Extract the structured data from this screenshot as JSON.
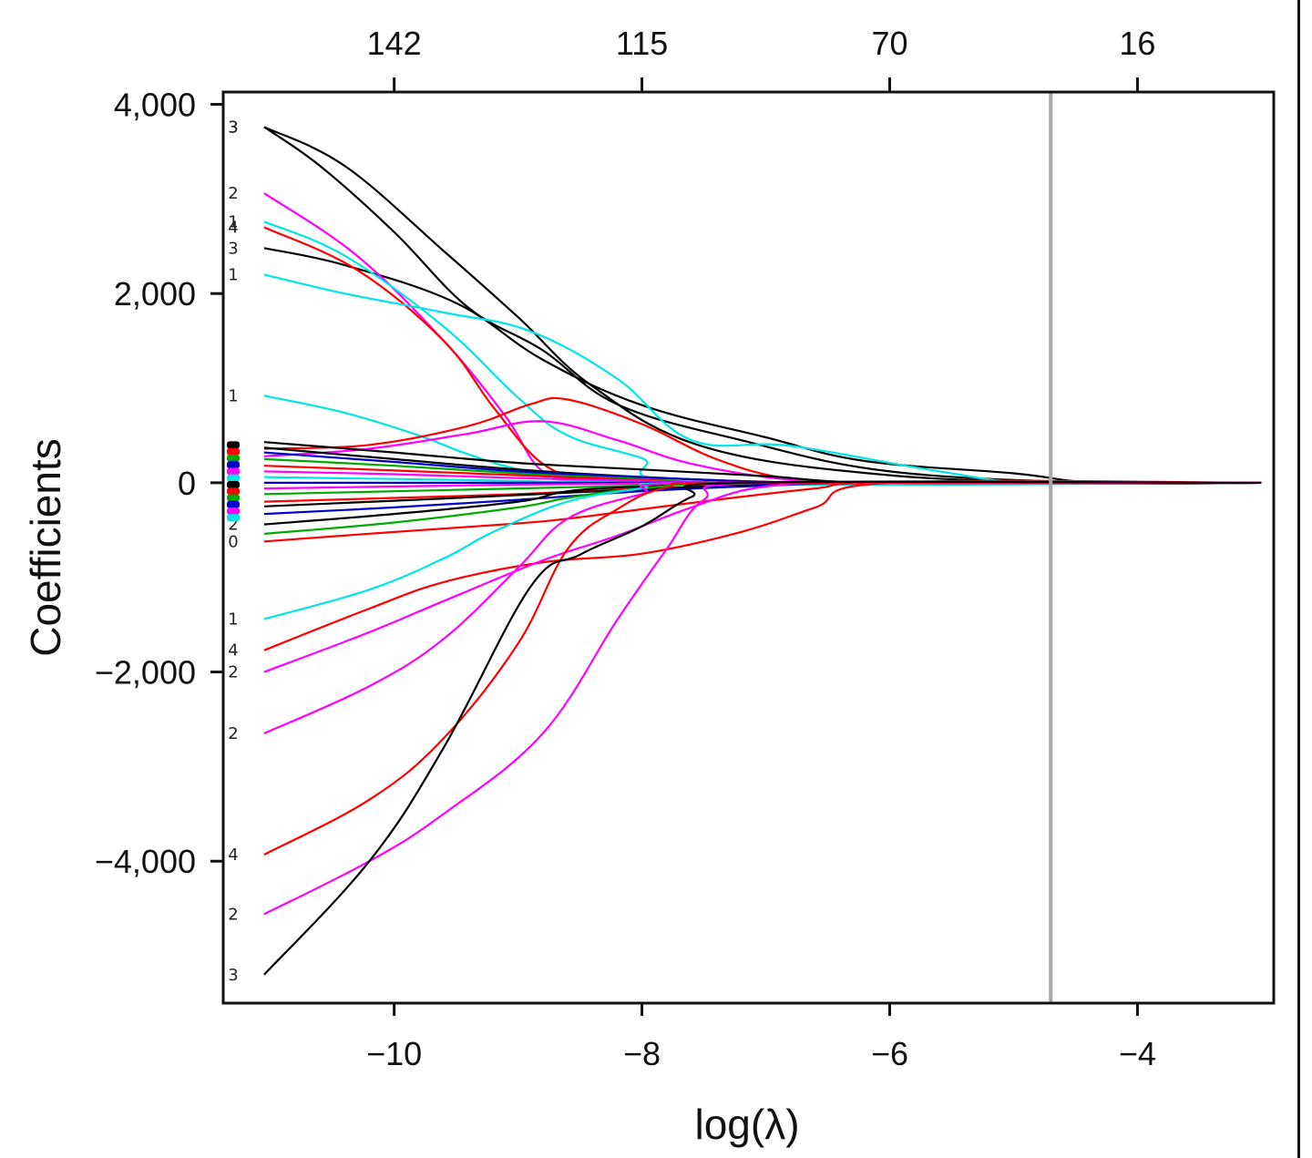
{
  "chart_data": {
    "type": "line",
    "title": "",
    "xlabel": "log(λ)",
    "ylabel": "Coefficients",
    "xlim": [
      -11.38,
      -2.9
    ],
    "ylim": [
      -5500,
      4130
    ],
    "x_ticks": [
      -10,
      -8,
      -6,
      -4
    ],
    "x_tick_labels": [
      "−10",
      "−8",
      "−6",
      "−4"
    ],
    "y_ticks": [
      4000,
      2000,
      0,
      -2000,
      -4000
    ],
    "y_tick_labels": [
      "4,000",
      "2,000",
      "0",
      "−2,000",
      "−4,000"
    ],
    "top_ticks": [
      -10,
      -8,
      -6,
      -4
    ],
    "top_tick_labels": [
      "142",
      "115",
      "70",
      "16"
    ],
    "vline": {
      "x": -4.7,
      "color": "#a8a8a8"
    },
    "grid": false,
    "legend": "none",
    "series": [
      {
        "color": "#000000",
        "label": "3",
        "points": [
          [
            -11.05,
            3760
          ],
          [
            -10.4,
            3350
          ],
          [
            -9.6,
            2450
          ],
          [
            -9.0,
            1750
          ],
          [
            -8.4,
            1020
          ],
          [
            -7.5,
            380
          ],
          [
            -6.0,
            80
          ],
          [
            -4.3,
            0
          ],
          [
            -3.0,
            0
          ]
        ]
      },
      {
        "color": "#000000",
        "label": "3",
        "points": [
          [
            -11.05,
            3760
          ],
          [
            -10.6,
            3350
          ],
          [
            -10.0,
            2650
          ],
          [
            -9.4,
            1850
          ],
          [
            -8.8,
            1400
          ],
          [
            -8.2,
            830
          ],
          [
            -7.2,
            450
          ],
          [
            -6.0,
            120
          ],
          [
            -4.3,
            0
          ],
          [
            -3.0,
            0
          ]
        ]
      },
      {
        "color": "#000000",
        "label": "3",
        "points": [
          [
            -11.05,
            2480
          ],
          [
            -10.4,
            2300
          ],
          [
            -9.5,
            1900
          ],
          [
            -8.8,
            1300
          ],
          [
            -8.0,
            820
          ],
          [
            -7.0,
            480
          ],
          [
            -6.2,
            230
          ],
          [
            -5.0,
            100
          ],
          [
            -4.3,
            0
          ],
          [
            -3.0,
            0
          ]
        ]
      },
      {
        "color": "#ff00ff",
        "label": "2",
        "points": [
          [
            -11.05,
            3060
          ],
          [
            -10.3,
            2400
          ],
          [
            -9.6,
            1500
          ],
          [
            -9.1,
            700
          ],
          [
            -8.8,
            120
          ],
          [
            -8.4,
            40
          ],
          [
            -7.5,
            0
          ],
          [
            -3.0,
            0
          ]
        ]
      },
      {
        "color": "#00e5e5",
        "label": "1",
        "points": [
          [
            -11.05,
            2760
          ],
          [
            -10.4,
            2400
          ],
          [
            -9.6,
            1650
          ],
          [
            -9.0,
            900
          ],
          [
            -8.6,
            500
          ],
          [
            -8.0,
            260
          ],
          [
            -7.5,
            0
          ],
          [
            -3.0,
            0
          ]
        ]
      },
      {
        "color": "#ff0000",
        "label": "4",
        "points": [
          [
            -11.05,
            2700
          ],
          [
            -10.3,
            2250
          ],
          [
            -9.6,
            1500
          ],
          [
            -9.2,
            800
          ],
          [
            -8.8,
            200
          ],
          [
            -8.4,
            60
          ],
          [
            -7.5,
            0
          ],
          [
            -3.0,
            0
          ]
        ]
      },
      {
        "color": "#00e5e5",
        "label": "1",
        "points": [
          [
            -11.05,
            2200
          ],
          [
            -10.4,
            2000
          ],
          [
            -9.6,
            1800
          ],
          [
            -8.9,
            1600
          ],
          [
            -8.2,
            1100
          ],
          [
            -7.6,
            450
          ],
          [
            -6.8,
            390
          ],
          [
            -5.6,
            120
          ],
          [
            -4.8,
            0
          ],
          [
            -3.0,
            0
          ]
        ]
      },
      {
        "color": "#00e5e5",
        "label": "1",
        "points": [
          [
            -11.05,
            920
          ],
          [
            -10.4,
            740
          ],
          [
            -9.8,
            500
          ],
          [
            -9.4,
            300
          ],
          [
            -8.9,
            120
          ],
          [
            -8.0,
            0
          ],
          [
            -3.0,
            0
          ]
        ]
      },
      {
        "color": "#ff0000",
        "label": "",
        "points": [
          [
            -11.05,
            360
          ],
          [
            -10.2,
            400
          ],
          [
            -9.4,
            600
          ],
          [
            -8.9,
            830
          ],
          [
            -8.6,
            880
          ],
          [
            -8.0,
            620
          ],
          [
            -7.4,
            250
          ],
          [
            -6.8,
            40
          ],
          [
            -6.0,
            0
          ],
          [
            -3.0,
            0
          ]
        ]
      },
      {
        "color": "#ff00ff",
        "label": "",
        "points": [
          [
            -11.05,
            280
          ],
          [
            -10.2,
            360
          ],
          [
            -9.4,
            520
          ],
          [
            -8.8,
            650
          ],
          [
            -8.2,
            450
          ],
          [
            -7.6,
            200
          ],
          [
            -6.8,
            30
          ],
          [
            -6.0,
            0
          ],
          [
            -3.0,
            0
          ]
        ]
      },
      {
        "color": "#000000",
        "label": "",
        "points": [
          [
            -11.05,
            430
          ],
          [
            -10.0,
            320
          ],
          [
            -9.0,
            210
          ],
          [
            -8.0,
            140
          ],
          [
            -7.0,
            70
          ],
          [
            -6.0,
            0
          ],
          [
            -3.0,
            0
          ]
        ]
      },
      {
        "color": "#000000",
        "label": "",
        "points": [
          [
            -11.05,
            370
          ],
          [
            -10.0,
            250
          ],
          [
            -9.0,
            140
          ],
          [
            -8.0,
            60
          ],
          [
            -7.0,
            10
          ],
          [
            -6.2,
            0
          ],
          [
            -3.0,
            0
          ]
        ]
      },
      {
        "color": "#00aa00",
        "label": "",
        "points": [
          [
            -11.05,
            250
          ],
          [
            -10.0,
            180
          ],
          [
            -9.0,
            100
          ],
          [
            -8.0,
            40
          ],
          [
            -7.0,
            0
          ],
          [
            -3.0,
            0
          ]
        ]
      },
      {
        "color": "#0000cc",
        "label": "",
        "points": [
          [
            -11.05,
            320
          ],
          [
            -10.0,
            220
          ],
          [
            -9.0,
            120
          ],
          [
            -8.0,
            60
          ],
          [
            -7.0,
            10
          ],
          [
            -6.0,
            0
          ],
          [
            -3.0,
            0
          ]
        ]
      },
      {
        "color": "#ff0000",
        "label": "",
        "points": [
          [
            -11.05,
            180
          ],
          [
            -10.0,
            130
          ],
          [
            -9.0,
            80
          ],
          [
            -8.0,
            30
          ],
          [
            -7.0,
            0
          ],
          [
            -3.0,
            0
          ]
        ]
      },
      {
        "color": "#ff00ff",
        "label": "",
        "points": [
          [
            -11.05,
            120
          ],
          [
            -10.0,
            90
          ],
          [
            -9.0,
            50
          ],
          [
            -8.0,
            20
          ],
          [
            -7.0,
            0
          ],
          [
            -3.0,
            0
          ]
        ]
      },
      {
        "color": "#00e5e5",
        "label": "",
        "points": [
          [
            -11.05,
            60
          ],
          [
            -10.0,
            40
          ],
          [
            -9.0,
            20
          ],
          [
            -8.0,
            0
          ],
          [
            -3.0,
            0
          ]
        ]
      },
      {
        "color": "#0000cc",
        "label": "",
        "points": [
          [
            -11.05,
            0
          ],
          [
            -10.0,
            0
          ],
          [
            -8.0,
            0
          ],
          [
            -6.0,
            0
          ],
          [
            -3.0,
            0
          ]
        ]
      },
      {
        "color": "#ff00ff",
        "label": "",
        "points": [
          [
            -11.05,
            -60
          ],
          [
            -10.0,
            -40
          ],
          [
            -9.0,
            -20
          ],
          [
            -8.0,
            -10
          ],
          [
            -7.0,
            0
          ],
          [
            -3.0,
            0
          ]
        ]
      },
      {
        "color": "#00aa00",
        "label": "",
        "points": [
          [
            -11.05,
            -120
          ],
          [
            -10.0,
            -90
          ],
          [
            -9.0,
            -60
          ],
          [
            -8.0,
            -30
          ],
          [
            -7.0,
            0
          ],
          [
            -3.0,
            0
          ]
        ]
      },
      {
        "color": "#ff0000",
        "label": "",
        "points": [
          [
            -11.05,
            -200
          ],
          [
            -10.0,
            -160
          ],
          [
            -9.0,
            -120
          ],
          [
            -8.0,
            -60
          ],
          [
            -7.0,
            -20
          ],
          [
            -6.0,
            0
          ],
          [
            -3.0,
            0
          ]
        ]
      },
      {
        "color": "#000000",
        "label": "",
        "points": [
          [
            -11.05,
            -250
          ],
          [
            -10.0,
            -190
          ],
          [
            -9.0,
            -130
          ],
          [
            -8.0,
            -70
          ],
          [
            -7.0,
            -20
          ],
          [
            -6.0,
            0
          ],
          [
            -3.0,
            0
          ]
        ]
      },
      {
        "color": "#0000cc",
        "label": "",
        "points": [
          [
            -11.05,
            -330
          ],
          [
            -10.0,
            -260
          ],
          [
            -9.0,
            -180
          ],
          [
            -8.0,
            -90
          ],
          [
            -7.0,
            -30
          ],
          [
            -6.0,
            0
          ],
          [
            -3.0,
            0
          ]
        ]
      },
      {
        "color": "#000000",
        "label": "2",
        "points": [
          [
            -11.05,
            -440
          ],
          [
            -10.0,
            -330
          ],
          [
            -9.0,
            -200
          ],
          [
            -8.6,
            -90
          ],
          [
            -8.0,
            -40
          ],
          [
            -7.0,
            0
          ],
          [
            -3.0,
            0
          ]
        ]
      },
      {
        "color": "#00aa00",
        "label": "",
        "points": [
          [
            -11.05,
            -540
          ],
          [
            -10.0,
            -420
          ],
          [
            -9.0,
            -260
          ],
          [
            -8.6,
            -160
          ],
          [
            -8.0,
            -60
          ],
          [
            -7.0,
            0
          ],
          [
            -3.0,
            0
          ]
        ]
      },
      {
        "color": "#ff0000",
        "label": "0",
        "points": [
          [
            -11.05,
            -620
          ],
          [
            -10.0,
            -520
          ],
          [
            -9.0,
            -430
          ],
          [
            -8.6,
            -380
          ],
          [
            -8.0,
            -280
          ],
          [
            -7.4,
            -180
          ],
          [
            -6.6,
            -60
          ],
          [
            -6.0,
            0
          ],
          [
            -3.0,
            0
          ]
        ]
      },
      {
        "color": "#00e5e5",
        "label": "1",
        "points": [
          [
            -11.05,
            -1440
          ],
          [
            -10.2,
            -1130
          ],
          [
            -9.6,
            -800
          ],
          [
            -9.2,
            -520
          ],
          [
            -8.6,
            -200
          ],
          [
            -8.0,
            -60
          ],
          [
            -7.5,
            0
          ],
          [
            -3.0,
            0
          ]
        ]
      },
      {
        "color": "#ff0000",
        "label": "4",
        "points": [
          [
            -11.05,
            -1770
          ],
          [
            -10.2,
            -1330
          ],
          [
            -9.6,
            -1050
          ],
          [
            -8.8,
            -840
          ],
          [
            -8.0,
            -750
          ],
          [
            -7.2,
            -520
          ],
          [
            -6.6,
            -260
          ],
          [
            -6.0,
            0
          ],
          [
            -3.0,
            0
          ]
        ]
      },
      {
        "color": "#ff00ff",
        "label": "2",
        "points": [
          [
            -11.05,
            -2000
          ],
          [
            -10.2,
            -1580
          ],
          [
            -9.6,
            -1250
          ],
          [
            -8.8,
            -820
          ],
          [
            -8.2,
            -560
          ],
          [
            -7.6,
            -260
          ],
          [
            -7.0,
            -40
          ],
          [
            -6.0,
            0
          ],
          [
            -3.0,
            0
          ]
        ]
      },
      {
        "color": "#ff00ff",
        "label": "2",
        "points": [
          [
            -11.05,
            -2650
          ],
          [
            -10.2,
            -2150
          ],
          [
            -9.6,
            -1650
          ],
          [
            -9.0,
            -900
          ],
          [
            -8.6,
            -380
          ],
          [
            -8.0,
            -120
          ],
          [
            -7.5,
            0
          ],
          [
            -3.0,
            0
          ]
        ]
      },
      {
        "color": "#ff0000",
        "label": "4",
        "points": [
          [
            -11.05,
            -3930
          ],
          [
            -10.2,
            -3350
          ],
          [
            -9.6,
            -2700
          ],
          [
            -9.0,
            -1700
          ],
          [
            -8.6,
            -700
          ],
          [
            -8.2,
            -280
          ],
          [
            -7.8,
            -50
          ],
          [
            -7.2,
            0
          ],
          [
            -3.0,
            0
          ]
        ]
      },
      {
        "color": "#ff00ff",
        "label": "2",
        "points": [
          [
            -11.05,
            -4560
          ],
          [
            -10.2,
            -4000
          ],
          [
            -9.6,
            -3500
          ],
          [
            -8.8,
            -2650
          ],
          [
            -8.2,
            -1450
          ],
          [
            -7.8,
            -700
          ],
          [
            -7.5,
            -180
          ],
          [
            -7.0,
            0
          ],
          [
            -3.0,
            0
          ]
        ]
      },
      {
        "color": "#000000",
        "label": "3",
        "points": [
          [
            -11.05,
            -5200
          ],
          [
            -10.2,
            -4000
          ],
          [
            -9.6,
            -2800
          ],
          [
            -8.9,
            -1100
          ],
          [
            -8.5,
            -760
          ],
          [
            -8.0,
            -460
          ],
          [
            -7.6,
            -150
          ],
          [
            -7.2,
            0
          ],
          [
            -3.0,
            0
          ]
        ]
      }
    ]
  }
}
